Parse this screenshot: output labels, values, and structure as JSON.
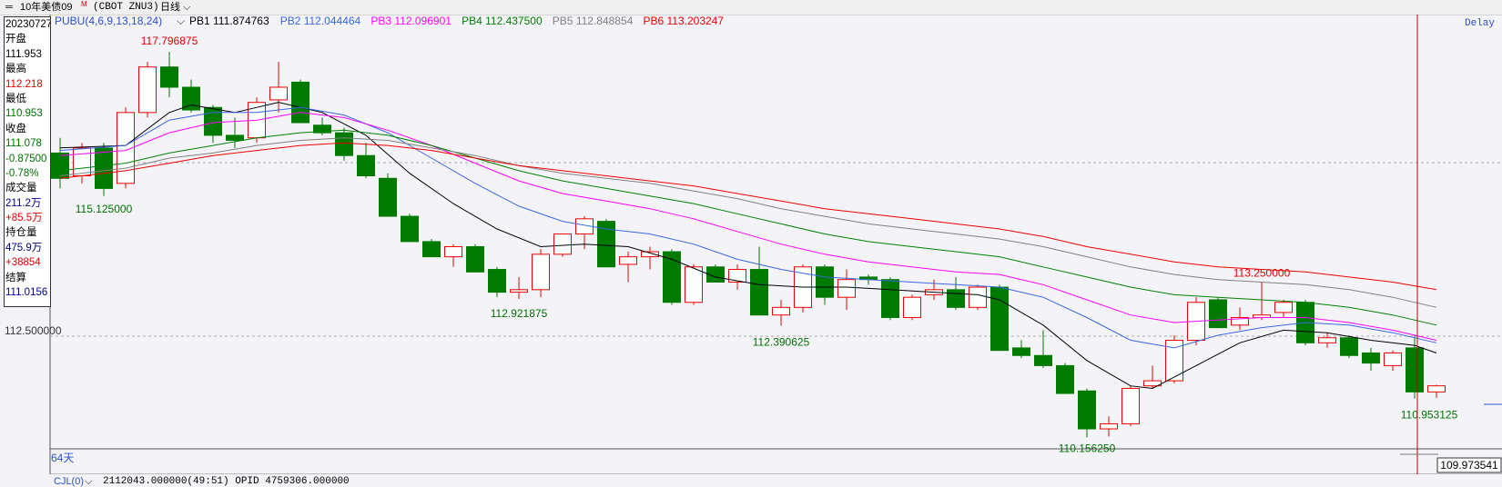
{
  "topbar": {
    "symbol": "10年美债09",
    "symbol_sup": "M",
    "code": "(CBOT ZNU3)",
    "period": "日线",
    "delay": "Delay"
  },
  "legend": {
    "indicator": "PUBU(4,6,9,13,18,24)",
    "items": [
      {
        "label": "PB1 111.874763",
        "color": "#000000"
      },
      {
        "label": "PB2 112.044464",
        "color": "#3a66e0"
      },
      {
        "label": "PB3 112.096901",
        "color": "#ff00ff"
      },
      {
        "label": "PB4 112.437500",
        "color": "#008000"
      },
      {
        "label": "PB5 112.848854",
        "color": "#808080"
      },
      {
        "label": "PB6 113.203247",
        "color": "#ee0000"
      }
    ]
  },
  "info_panel": [
    {
      "text": "20230727",
      "color": "#000000"
    },
    {
      "text": "开盘",
      "color": "#000000"
    },
    {
      "text": "111.953",
      "color": "#000000"
    },
    {
      "text": "最高",
      "color": "#000000"
    },
    {
      "text": "112.218",
      "color": "#e00000"
    },
    {
      "text": "最低",
      "color": "#000000"
    },
    {
      "text": "110.953",
      "color": "#007000"
    },
    {
      "text": "收盘",
      "color": "#000000"
    },
    {
      "text": "111.078",
      "color": "#007000"
    },
    {
      "text": "-0.87500",
      "color": "#007000"
    },
    {
      "text": "-0.78%",
      "color": "#007000"
    },
    {
      "text": "成交量",
      "color": "#000000"
    },
    {
      "text": "211.2万",
      "color": "#000080"
    },
    {
      "text": "+85.5万",
      "color": "#e00000"
    },
    {
      "text": "持仓量",
      "color": "#000000"
    },
    {
      "text": "475.9万",
      "color": "#000080"
    },
    {
      "text": "+38854",
      "color": "#e00000"
    },
    {
      "text": "结算",
      "color": "#000000"
    },
    {
      "text": "111.0156",
      "color": "#000080"
    }
  ],
  "axis": {
    "gridline_label": "112.500000",
    "bottom_price": "109.973541",
    "bar_count": "64天"
  },
  "bottombar": {
    "label": "CJL(0)",
    "values": "2112043.000000(49:51)  OPID 4759306.000000"
  },
  "colors": {
    "up": "#ee0000",
    "down": "#007a00",
    "cursor": "#c00000"
  },
  "chart_data": {
    "type": "candlestick",
    "y_range": [
      109.973541,
      118.5
    ],
    "candles": [
      [
        115.8,
        116.1,
        115.1,
        115.3
      ],
      [
        115.35,
        116.0,
        115.2,
        115.9
      ],
      [
        115.9,
        116.0,
        114.95,
        115.1
      ],
      [
        115.2,
        116.7,
        115.1,
        116.6
      ],
      [
        116.6,
        117.6,
        116.5,
        117.5
      ],
      [
        117.5,
        117.8,
        116.9,
        117.1
      ],
      [
        117.1,
        117.25,
        116.6,
        116.65
      ],
      [
        116.7,
        116.75,
        116.0,
        116.15
      ],
      [
        116.15,
        116.5,
        115.9,
        116.05
      ],
      [
        116.1,
        116.9,
        116.0,
        116.8
      ],
      [
        116.85,
        117.6,
        116.6,
        117.1
      ],
      [
        117.2,
        117.25,
        116.4,
        116.4
      ],
      [
        116.35,
        116.5,
        116.15,
        116.2
      ],
      [
        116.2,
        116.3,
        115.65,
        115.75
      ],
      [
        115.75,
        116.0,
        115.3,
        115.35
      ],
      [
        115.3,
        115.4,
        114.55,
        114.55
      ],
      [
        114.55,
        114.6,
        114.05,
        114.05
      ],
      [
        114.05,
        114.1,
        113.75,
        113.75
      ],
      [
        113.75,
        114.0,
        113.55,
        113.95
      ],
      [
        113.95,
        114.0,
        113.45,
        113.45
      ],
      [
        113.5,
        113.55,
        112.95,
        113.05
      ],
      [
        113.05,
        113.35,
        112.92,
        113.1
      ],
      [
        113.1,
        113.9,
        112.95,
        113.8
      ],
      [
        113.8,
        114.2,
        113.75,
        114.2
      ],
      [
        114.2,
        114.55,
        113.9,
        114.5
      ],
      [
        114.45,
        114.5,
        113.55,
        113.55
      ],
      [
        113.6,
        113.85,
        113.25,
        113.75
      ],
      [
        113.75,
        113.95,
        113.5,
        113.85
      ],
      [
        113.85,
        113.9,
        112.8,
        112.85
      ],
      [
        112.85,
        113.6,
        112.8,
        113.55
      ],
      [
        113.55,
        113.6,
        113.25,
        113.25
      ],
      [
        113.25,
        113.6,
        113.1,
        113.5
      ],
      [
        113.5,
        113.95,
        112.6,
        112.6
      ],
      [
        112.6,
        112.9,
        112.39,
        112.75
      ],
      [
        112.75,
        113.6,
        112.65,
        113.55
      ],
      [
        113.55,
        113.6,
        112.8,
        112.95
      ],
      [
        112.95,
        113.5,
        112.7,
        113.3
      ],
      [
        113.35,
        113.4,
        113.2,
        113.3
      ],
      [
        113.3,
        113.35,
        112.5,
        112.55
      ],
      [
        112.55,
        113.0,
        112.5,
        112.95
      ],
      [
        113.0,
        113.3,
        112.9,
        113.1
      ],
      [
        113.1,
        113.35,
        112.7,
        112.75
      ],
      [
        112.75,
        113.2,
        112.7,
        113.15
      ],
      [
        113.15,
        113.2,
        111.9,
        111.9
      ],
      [
        111.95,
        112.1,
        111.75,
        111.8
      ],
      [
        111.8,
        112.3,
        111.55,
        111.6
      ],
      [
        111.6,
        111.65,
        111.05,
        111.05
      ],
      [
        111.1,
        111.15,
        110.18,
        110.35
      ],
      [
        110.35,
        110.6,
        110.2,
        110.45
      ],
      [
        110.45,
        111.2,
        110.4,
        111.15
      ],
      [
        111.2,
        111.6,
        111.15,
        111.3
      ],
      [
        111.3,
        112.2,
        111.25,
        112.1
      ],
      [
        112.1,
        112.95,
        112.0,
        112.85
      ],
      [
        112.9,
        112.95,
        112.35,
        112.35
      ],
      [
        112.4,
        112.75,
        112.3,
        112.55
      ],
      [
        112.55,
        113.25,
        112.5,
        112.6
      ],
      [
        112.65,
        112.9,
        112.55,
        112.85
      ],
      [
        112.85,
        112.9,
        112.0,
        112.05
      ],
      [
        112.05,
        112.25,
        111.95,
        112.15
      ],
      [
        112.15,
        112.2,
        111.75,
        111.8
      ],
      [
        111.85,
        111.95,
        111.5,
        111.65
      ],
      [
        111.6,
        111.9,
        111.5,
        111.85
      ],
      [
        111.95,
        112.22,
        110.95,
        111.08
      ],
      [
        111.08,
        111.22,
        110.96,
        111.2
      ]
    ],
    "annotations": [
      {
        "text": "117.796875",
        "color": "#e00000"
      },
      {
        "text": "115.125000",
        "color": "#007000"
      },
      {
        "text": "112.921875",
        "color": "#007000"
      },
      {
        "text": "112.390625",
        "color": "#007000"
      },
      {
        "text": "113.250000",
        "color": "#e00000"
      },
      {
        "text": "110.953125",
        "color": "#007000"
      },
      {
        "text": "110.156250",
        "color": "#007000"
      }
    ],
    "ma_series": [
      {
        "name": "PB1",
        "color": "#000000",
        "points": [
          [
            0,
            115.9
          ],
          [
            3,
            115.95
          ],
          [
            5,
            116.6
          ],
          [
            6,
            116.75
          ],
          [
            8,
            116.6
          ],
          [
            10,
            116.8
          ],
          [
            12,
            116.6
          ],
          [
            14,
            116.15
          ],
          [
            16,
            115.4
          ],
          [
            18,
            114.8
          ],
          [
            20,
            114.3
          ],
          [
            22,
            113.95
          ],
          [
            24,
            114.0
          ],
          [
            26,
            113.95
          ],
          [
            28,
            113.7
          ],
          [
            30,
            113.35
          ],
          [
            32,
            113.2
          ],
          [
            34,
            113.15
          ],
          [
            36,
            113.15
          ],
          [
            38,
            113.1
          ],
          [
            40,
            113.05
          ],
          [
            42,
            113.0
          ],
          [
            43,
            112.9
          ],
          [
            45,
            112.4
          ],
          [
            47,
            111.7
          ],
          [
            49,
            111.2
          ],
          [
            50,
            111.15
          ],
          [
            52,
            111.6
          ],
          [
            54,
            112.05
          ],
          [
            56,
            112.3
          ],
          [
            58,
            112.25
          ],
          [
            60,
            112.1
          ],
          [
            62,
            112.0
          ],
          [
            63,
            111.85
          ]
        ]
      },
      {
        "name": "PB2",
        "color": "#3a66e0",
        "points": [
          [
            0,
            115.85
          ],
          [
            3,
            115.95
          ],
          [
            5,
            116.45
          ],
          [
            7,
            116.6
          ],
          [
            9,
            116.6
          ],
          [
            11,
            116.7
          ],
          [
            13,
            116.55
          ],
          [
            15,
            116.2
          ],
          [
            17,
            115.7
          ],
          [
            19,
            115.2
          ],
          [
            21,
            114.75
          ],
          [
            23,
            114.45
          ],
          [
            25,
            114.3
          ],
          [
            27,
            114.2
          ],
          [
            29,
            114.0
          ],
          [
            31,
            113.7
          ],
          [
            33,
            113.5
          ],
          [
            35,
            113.35
          ],
          [
            37,
            113.3
          ],
          [
            39,
            113.25
          ],
          [
            41,
            113.2
          ],
          [
            43,
            113.15
          ],
          [
            45,
            112.95
          ],
          [
            47,
            112.55
          ],
          [
            49,
            112.1
          ],
          [
            51,
            111.95
          ],
          [
            53,
            112.2
          ],
          [
            55,
            112.35
          ],
          [
            57,
            112.45
          ],
          [
            59,
            112.4
          ],
          [
            61,
            112.25
          ],
          [
            63,
            112.05
          ]
        ]
      },
      {
        "name": "PB3",
        "color": "#ff00ff",
        "points": [
          [
            0,
            115.75
          ],
          [
            3,
            115.85
          ],
          [
            5,
            116.2
          ],
          [
            7,
            116.4
          ],
          [
            9,
            116.45
          ],
          [
            11,
            116.6
          ],
          [
            13,
            116.5
          ],
          [
            15,
            116.25
          ],
          [
            17,
            115.95
          ],
          [
            19,
            115.6
          ],
          [
            21,
            115.25
          ],
          [
            23,
            115.0
          ],
          [
            25,
            114.85
          ],
          [
            27,
            114.7
          ],
          [
            29,
            114.5
          ],
          [
            31,
            114.25
          ],
          [
            33,
            114.0
          ],
          [
            35,
            113.8
          ],
          [
            37,
            113.65
          ],
          [
            39,
            113.55
          ],
          [
            41,
            113.45
          ],
          [
            43,
            113.4
          ],
          [
            45,
            113.2
          ],
          [
            47,
            112.9
          ],
          [
            49,
            112.6
          ],
          [
            51,
            112.45
          ],
          [
            53,
            112.5
          ],
          [
            55,
            112.55
          ],
          [
            57,
            112.55
          ],
          [
            59,
            112.45
          ],
          [
            61,
            112.3
          ],
          [
            63,
            112.1
          ]
        ]
      },
      {
        "name": "PB4",
        "color": "#008000",
        "points": [
          [
            0,
            115.45
          ],
          [
            3,
            115.6
          ],
          [
            5,
            115.8
          ],
          [
            7,
            115.95
          ],
          [
            9,
            116.1
          ],
          [
            11,
            116.2
          ],
          [
            13,
            116.25
          ],
          [
            15,
            116.15
          ],
          [
            17,
            115.95
          ],
          [
            19,
            115.7
          ],
          [
            21,
            115.45
          ],
          [
            23,
            115.25
          ],
          [
            25,
            115.1
          ],
          [
            27,
            114.95
          ],
          [
            29,
            114.8
          ],
          [
            31,
            114.6
          ],
          [
            33,
            114.4
          ],
          [
            35,
            114.2
          ],
          [
            37,
            114.05
          ],
          [
            39,
            113.95
          ],
          [
            41,
            113.85
          ],
          [
            43,
            113.75
          ],
          [
            45,
            113.55
          ],
          [
            47,
            113.35
          ],
          [
            49,
            113.15
          ],
          [
            51,
            113.0
          ],
          [
            53,
            112.95
          ],
          [
            55,
            112.9
          ],
          [
            57,
            112.85
          ],
          [
            59,
            112.75
          ],
          [
            61,
            112.6
          ],
          [
            63,
            112.4
          ]
        ]
      },
      {
        "name": "PB5",
        "color": "#808080",
        "points": [
          [
            0,
            115.35
          ],
          [
            3,
            115.5
          ],
          [
            5,
            115.7
          ],
          [
            7,
            115.8
          ],
          [
            9,
            115.95
          ],
          [
            11,
            116.05
          ],
          [
            13,
            116.1
          ],
          [
            15,
            116.05
          ],
          [
            17,
            115.9
          ],
          [
            19,
            115.75
          ],
          [
            21,
            115.55
          ],
          [
            23,
            115.4
          ],
          [
            25,
            115.3
          ],
          [
            27,
            115.2
          ],
          [
            29,
            115.05
          ],
          [
            31,
            114.9
          ],
          [
            33,
            114.7
          ],
          [
            35,
            114.55
          ],
          [
            37,
            114.4
          ],
          [
            39,
            114.3
          ],
          [
            41,
            114.2
          ],
          [
            43,
            114.1
          ],
          [
            45,
            113.95
          ],
          [
            47,
            113.75
          ],
          [
            49,
            113.55
          ],
          [
            51,
            113.4
          ],
          [
            53,
            113.3
          ],
          [
            55,
            113.25
          ],
          [
            57,
            113.2
          ],
          [
            59,
            113.1
          ],
          [
            61,
            112.95
          ],
          [
            63,
            112.75
          ]
        ]
      },
      {
        "name": "PB6",
        "color": "#ee0000",
        "points": [
          [
            0,
            115.3
          ],
          [
            3,
            115.45
          ],
          [
            5,
            115.6
          ],
          [
            7,
            115.75
          ],
          [
            9,
            115.85
          ],
          [
            11,
            115.95
          ],
          [
            13,
            116.0
          ],
          [
            15,
            115.95
          ],
          [
            17,
            115.85
          ],
          [
            19,
            115.7
          ],
          [
            21,
            115.55
          ],
          [
            23,
            115.45
          ],
          [
            25,
            115.35
          ],
          [
            27,
            115.25
          ],
          [
            29,
            115.15
          ],
          [
            31,
            115.0
          ],
          [
            33,
            114.85
          ],
          [
            35,
            114.7
          ],
          [
            37,
            114.6
          ],
          [
            39,
            114.5
          ],
          [
            41,
            114.4
          ],
          [
            43,
            114.3
          ],
          [
            45,
            114.15
          ],
          [
            47,
            113.95
          ],
          [
            49,
            113.8
          ],
          [
            51,
            113.65
          ],
          [
            53,
            113.55
          ],
          [
            55,
            113.5
          ],
          [
            57,
            113.45
          ],
          [
            59,
            113.35
          ],
          [
            61,
            113.25
          ],
          [
            63,
            113.1
          ]
        ]
      }
    ]
  }
}
